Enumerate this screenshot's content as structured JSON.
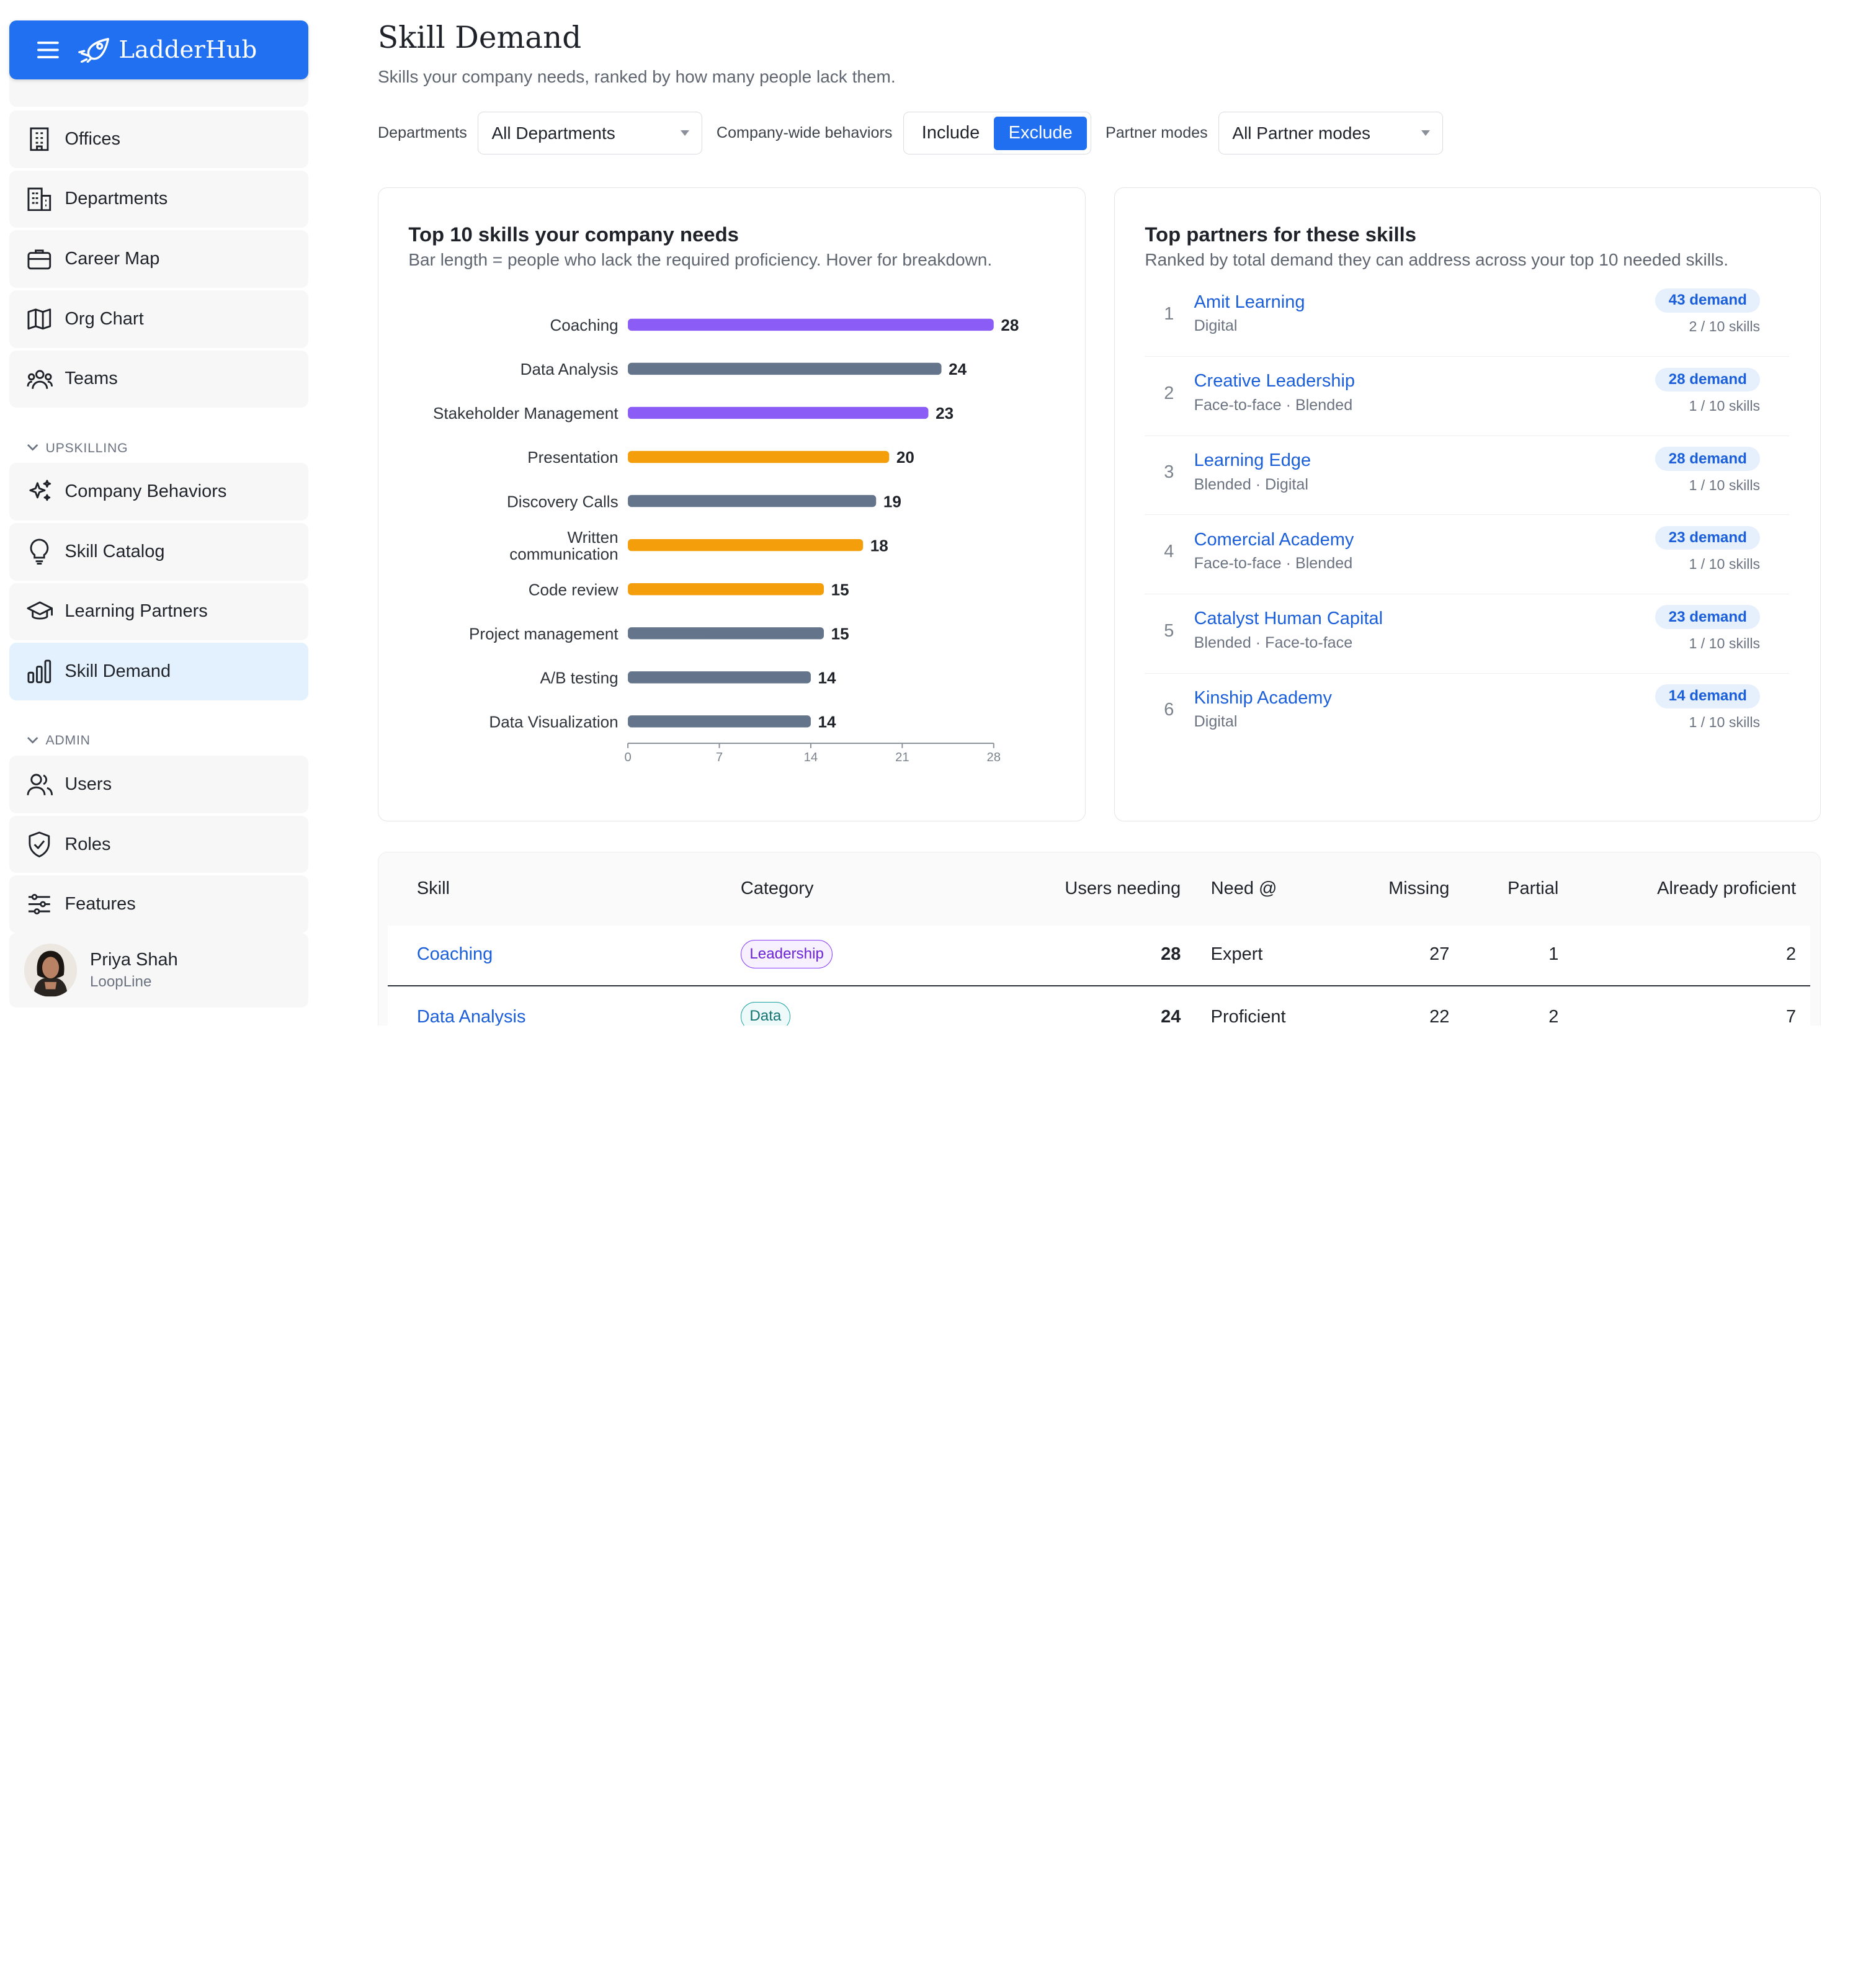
{
  "app": {
    "name": "LadderHub"
  },
  "sidebar": {
    "items": [
      {
        "label": "Offices",
        "icon": "building-icon"
      },
      {
        "label": "Departments",
        "icon": "buildings-icon"
      },
      {
        "label": "Career Map",
        "icon": "briefcase-icon"
      },
      {
        "label": "Org Chart",
        "icon": "map-icon"
      },
      {
        "label": "Teams",
        "icon": "team-icon"
      }
    ],
    "sections": [
      {
        "label": "UPSKILLING",
        "items": [
          {
            "label": "Company Behaviors",
            "icon": "sparkles-icon"
          },
          {
            "label": "Skill Catalog",
            "icon": "lightbulb-icon"
          },
          {
            "label": "Learning Partners",
            "icon": "graduation-cap-icon"
          },
          {
            "label": "Skill Demand",
            "icon": "bar-chart-icon",
            "active": true
          }
        ]
      },
      {
        "label": "ADMIN",
        "items": [
          {
            "label": "Users",
            "icon": "users-icon"
          },
          {
            "label": "Roles",
            "icon": "shield-check-icon"
          },
          {
            "label": "Features",
            "icon": "sliders-icon"
          }
        ]
      }
    ],
    "user": {
      "name": "Priya Shah",
      "org": "LoopLine"
    }
  },
  "page": {
    "title": "Skill Demand",
    "subtitle": "Skills your company needs, ranked by how many people lack them."
  },
  "filters": {
    "departments_label": "Departments",
    "departments_value": "All Departments",
    "behaviors_label": "Company-wide behaviors",
    "behaviors_options": [
      "Include",
      "Exclude"
    ],
    "behaviors_selected": "Exclude",
    "partner_modes_label": "Partner modes",
    "partner_modes_value": "All Partner modes"
  },
  "chart_card": {
    "title": "Top 10 skills your company needs",
    "subtitle": "Bar length = people who lack the required proficiency. Hover for breakdown."
  },
  "chart_data": {
    "type": "bar",
    "orientation": "horizontal",
    "categories": [
      "Coaching",
      "Data Analysis",
      "Stakeholder Management",
      "Presentation",
      "Discovery Calls",
      "Written communication",
      "Code review",
      "Project management",
      "A/B testing",
      "Data Visualization"
    ],
    "values": [
      28,
      24,
      23,
      20,
      19,
      18,
      15,
      15,
      14,
      14
    ],
    "bar_colors": [
      "#8b5cf6",
      "#64748b",
      "#8b5cf6",
      "#f59e0b",
      "#64748b",
      "#f59e0b",
      "#f59e0b",
      "#64748b",
      "#64748b",
      "#64748b"
    ],
    "xlim": [
      0,
      28
    ],
    "xticks": [
      0,
      7,
      14,
      21,
      28
    ],
    "grid": false,
    "data_labels": true
  },
  "partners_card": {
    "title": "Top partners for these skills",
    "subtitle": "Ranked by total demand they can address across your top 10 needed skills.",
    "partners": [
      {
        "rank": "1",
        "name": "Amit Learning",
        "modes": "Digital",
        "demand": "43 demand",
        "skills": "2 / 10 skills"
      },
      {
        "rank": "2",
        "name": "Creative Leadership",
        "modes": "Face-to-face · Blended",
        "demand": "28 demand",
        "skills": "1 / 10 skills"
      },
      {
        "rank": "3",
        "name": "Learning Edge",
        "modes": "Blended · Digital",
        "demand": "28 demand",
        "skills": "1 / 10 skills"
      },
      {
        "rank": "4",
        "name": "Comercial Academy",
        "modes": "Face-to-face · Blended",
        "demand": "23 demand",
        "skills": "1 / 10 skills"
      },
      {
        "rank": "5",
        "name": "Catalyst Human Capital",
        "modes": "Blended · Face-to-face",
        "demand": "23 demand",
        "skills": "1 / 10 skills"
      },
      {
        "rank": "6",
        "name": "Kinship Academy",
        "modes": "Digital",
        "demand": "14 demand",
        "skills": "1 / 10 skills"
      }
    ]
  },
  "table": {
    "headers": [
      "Skill",
      "Category",
      "Users needing",
      "Need @",
      "Missing",
      "Partial",
      "Already proficient"
    ],
    "rows": [
      {
        "skill": "Coaching",
        "category": "Leadership",
        "users_needing": "28",
        "need": "Expert",
        "missing": "27",
        "partial": "1",
        "proficient": "2"
      },
      {
        "skill": "Data Analysis",
        "category": "Data",
        "users_needing": "24",
        "need": "Proficient",
        "missing": "22",
        "partial": "2",
        "proficient": "7"
      }
    ]
  }
}
